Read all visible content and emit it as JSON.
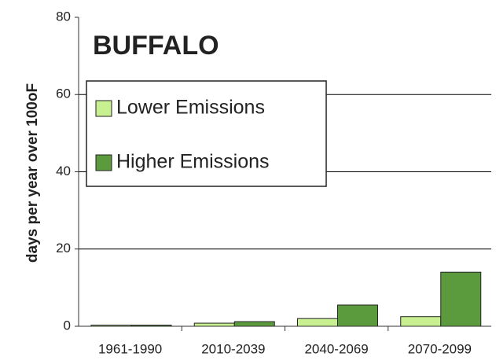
{
  "chart_data": {
    "type": "bar",
    "title": "BUFFALO",
    "y_label": "days per year over 100oF",
    "categories": [
      "1961-1990",
      "2010-2039",
      "2040-2069",
      "2070-2099"
    ],
    "series": [
      {
        "name": "Lower Emissions",
        "color": "#c8f090",
        "values": [
          0.3,
          0.8,
          2,
          2.5
        ]
      },
      {
        "name": "Higher Emissions",
        "color": "#5c9a3e",
        "values": [
          0.3,
          1.2,
          5.5,
          14
        ]
      }
    ],
    "ylim": [
      0,
      80
    ],
    "yticks": [
      0,
      20,
      40,
      60,
      80
    ],
    "grid": true,
    "legend": "upper left"
  }
}
